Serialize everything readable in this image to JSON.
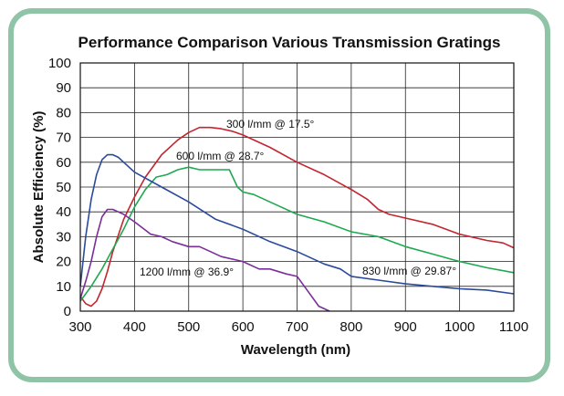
{
  "chart_data": {
    "type": "line",
    "title": "Performance Comparison Various Transmission Gratings",
    "xlabel": "Wavelength (nm)",
    "ylabel": "Absolute Efficiency (%)",
    "xlim": [
      300,
      1100
    ],
    "ylim": [
      0,
      100
    ],
    "xticks": [
      "300",
      "400",
      "500",
      "600",
      "700",
      "800",
      "900",
      "1000",
      "1100"
    ],
    "yticks": [
      "0",
      "10",
      "20",
      "30",
      "40",
      "50",
      "60",
      "70",
      "80",
      "90",
      "100"
    ],
    "grid": true,
    "series": [
      {
        "name": "300 l/mm @ 17.5°",
        "color": "#c3262f",
        "x": [
          300,
          310,
          320,
          330,
          340,
          350,
          360,
          380,
          400,
          420,
          450,
          480,
          500,
          520,
          540,
          560,
          580,
          600,
          650,
          700,
          750,
          800,
          830,
          850,
          870,
          900,
          950,
          1000,
          1050,
          1080,
          1100
        ],
        "y": [
          6,
          3,
          2,
          4,
          9,
          16,
          24,
          37,
          46,
          54,
          63,
          69,
          72,
          74,
          74,
          73.5,
          72.5,
          71,
          66,
          60,
          55,
          49,
          45,
          41,
          39,
          37.5,
          35,
          31,
          28.5,
          27.5,
          25.5
        ]
      },
      {
        "name": "600 l/mm @ 28.7°",
        "color": "#1fa84f",
        "x": [
          300,
          320,
          340,
          360,
          380,
          400,
          420,
          440,
          460,
          480,
          500,
          520,
          540,
          560,
          575,
          590,
          600,
          620,
          650,
          700,
          750,
          800,
          850,
          900,
          950,
          1000,
          1050,
          1100
        ],
        "y": [
          4,
          10,
          17,
          25,
          33,
          42,
          49,
          54,
          55,
          57,
          58,
          57,
          57,
          57,
          57,
          50,
          48,
          47,
          44,
          39,
          36,
          32,
          30,
          26,
          23,
          20,
          17.5,
          15.5
        ]
      },
      {
        "name": "830 l/mm @ 29.87°",
        "color": "#2b4a9c",
        "x": [
          300,
          310,
          320,
          330,
          340,
          350,
          360,
          370,
          380,
          400,
          450,
          500,
          550,
          600,
          650,
          700,
          750,
          780,
          800,
          850,
          900,
          950,
          1000,
          1050,
          1100
        ],
        "y": [
          10,
          30,
          45,
          55,
          61,
          63,
          63,
          62,
          60,
          56,
          50,
          44,
          37,
          33,
          28,
          24,
          19,
          17,
          14,
          12.5,
          11,
          10,
          9,
          8.5,
          7
        ]
      },
      {
        "name": "1200 l/mm @ 36.9°",
        "color": "#7a2e9a",
        "x": [
          300,
          310,
          320,
          330,
          340,
          350,
          360,
          370,
          380,
          400,
          430,
          450,
          470,
          500,
          520,
          540,
          560,
          600,
          630,
          650,
          680,
          700,
          720,
          740,
          760
        ],
        "y": [
          5,
          12,
          20,
          30,
          38,
          41,
          41,
          40,
          39,
          36,
          31,
          30,
          28,
          26,
          26,
          24,
          22,
          20,
          17,
          17,
          15,
          14,
          8,
          2,
          0
        ]
      }
    ],
    "annotations": [
      {
        "text": "300 l/mm @ 17.5°"
      },
      {
        "text": "600 l/mm @ 28.7°"
      },
      {
        "text": "1200 l/mm @ 36.9°"
      },
      {
        "text": "830 l/mm @ 29.87°"
      }
    ]
  }
}
